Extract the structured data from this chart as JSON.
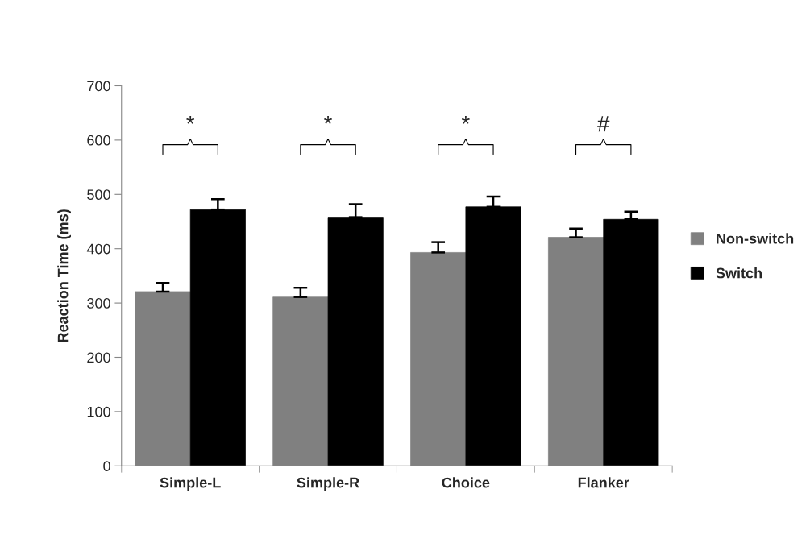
{
  "chart_data": {
    "type": "bar",
    "ylabel": "Reaction Time (ms)",
    "categories": [
      "Simple-L",
      "Simple-R",
      "Choice",
      "Flanker"
    ],
    "series": [
      {
        "name": "Non-switch",
        "color": "#808080",
        "values": [
          321,
          311,
          393,
          421
        ],
        "errors": [
          [
            321,
            337
          ],
          [
            311,
            328
          ],
          [
            393,
            412
          ],
          [
            421,
            437
          ]
        ]
      },
      {
        "name": "Switch",
        "color": "#000000",
        "values": [
          472,
          458,
          477,
          454
        ],
        "errors": [
          [
            472,
            491
          ],
          [
            458,
            482
          ],
          [
            477,
            496
          ],
          [
            454,
            468
          ]
        ]
      }
    ],
    "ylim": [
      0,
      700
    ],
    "yticks": [
      0,
      100,
      200,
      300,
      400,
      500,
      600,
      700
    ],
    "grid": false,
    "legend": "right",
    "annotations": [
      "*",
      "*",
      "*",
      "#"
    ]
  }
}
